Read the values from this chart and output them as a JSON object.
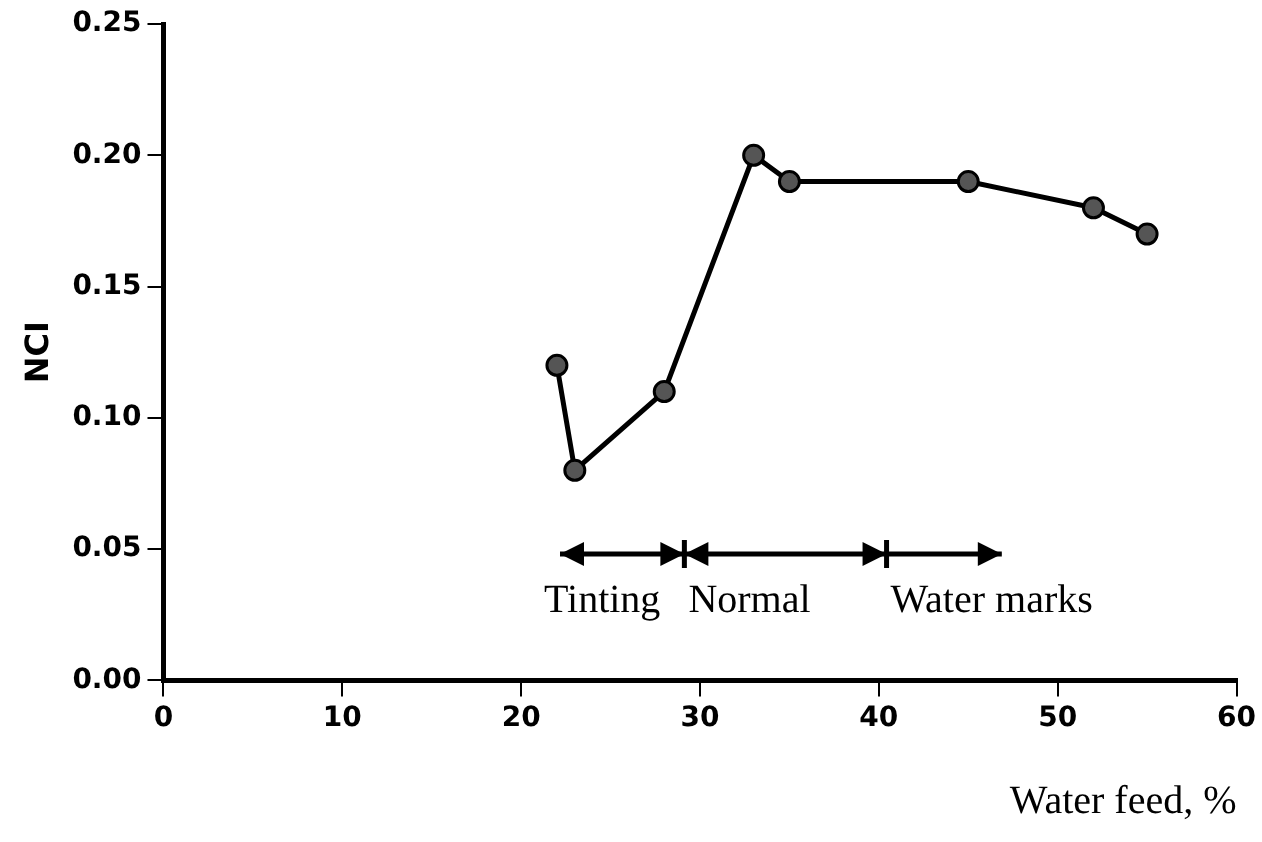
{
  "chart_data": {
    "type": "line",
    "xlabel": "Water feed, %",
    "ylabel": "NCI",
    "x": [
      22,
      23,
      28,
      33,
      35,
      45,
      52,
      55
    ],
    "series": [
      {
        "color": "#000000",
        "values": [
          0.12,
          0.08,
          0.11,
          0.2,
          0.19,
          0.19,
          0.18,
          0.17
        ]
      }
    ],
    "xlim": [
      0,
      60
    ],
    "xticks": [
      0,
      10,
      20,
      30,
      40,
      50,
      60
    ],
    "ylim": [
      0,
      0.25
    ],
    "yticks": [
      {
        "value": 0,
        "label": "0.00"
      },
      {
        "value": 0.05,
        "label": "0.05"
      },
      {
        "value": 0.1,
        "label": "0.10"
      },
      {
        "value": 0.15,
        "label": "0.15"
      },
      {
        "value": 0.2,
        "label": "0.20"
      },
      {
        "value": 0.25,
        "label": "0.25"
      }
    ],
    "grid": false,
    "legend": false,
    "marker": "circle",
    "line_style": "solid",
    "annotations": [
      "Tinting",
      "Normal",
      "Water marks"
    ]
  }
}
